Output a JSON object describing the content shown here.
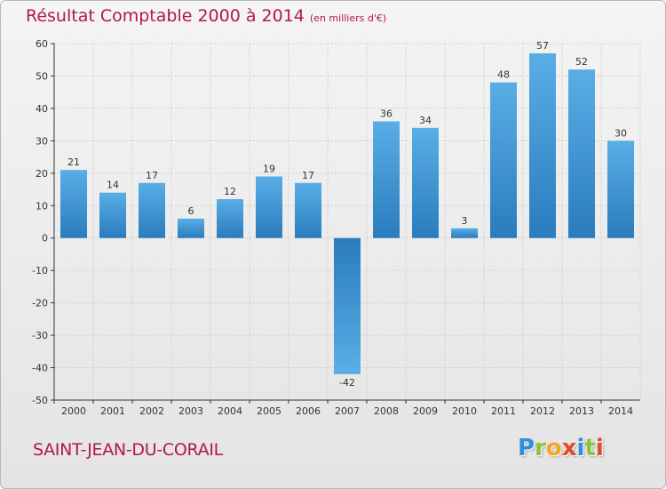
{
  "header": {
    "title": "Résultat Comptable 2000 à 2014",
    "subtitle": "(en milliers d'€)"
  },
  "footer": {
    "commune": "SAINT-JEAN-DU-CORAIL",
    "brand": [
      "P",
      "r",
      "o",
      "x",
      "i",
      "t",
      "i"
    ],
    "brand_colors": [
      "#2f8fd8",
      "#8bc33a",
      "#f5a623",
      "#e04c2a",
      "#2f8fd8",
      "#8bc33a",
      "#e04c2a"
    ]
  },
  "colors": {
    "bar_light": "#5aaee6",
    "bar_dark": "#2a7cbd",
    "axis": "#333333",
    "grid": "#cfcfcf",
    "title": "#b3174e"
  },
  "chart_data": {
    "type": "bar",
    "categories": [
      "2000",
      "2001",
      "2002",
      "2003",
      "2004",
      "2005",
      "2006",
      "2007",
      "2008",
      "2009",
      "2010",
      "2011",
      "2012",
      "2013",
      "2014"
    ],
    "values": [
      21,
      14,
      17,
      6,
      12,
      19,
      17,
      -42,
      36,
      34,
      3,
      48,
      57,
      52,
      30
    ],
    "data_labels": [
      "21",
      "14",
      "17",
      "6",
      "12",
      "19",
      "17",
      "-42",
      "36",
      "34",
      "3",
      "48",
      "57",
      "52",
      "30"
    ],
    "ylim": [
      -50,
      60
    ],
    "yticks": [
      60,
      50,
      40,
      30,
      20,
      10,
      0,
      -10,
      -20,
      -30,
      -40,
      -50
    ],
    "ytick_labels": [
      "60",
      "50",
      "40",
      "30",
      "20",
      "10",
      "0",
      "-10",
      "-20",
      "-30",
      "-40",
      "-50"
    ],
    "grid": true,
    "legend": "none"
  }
}
